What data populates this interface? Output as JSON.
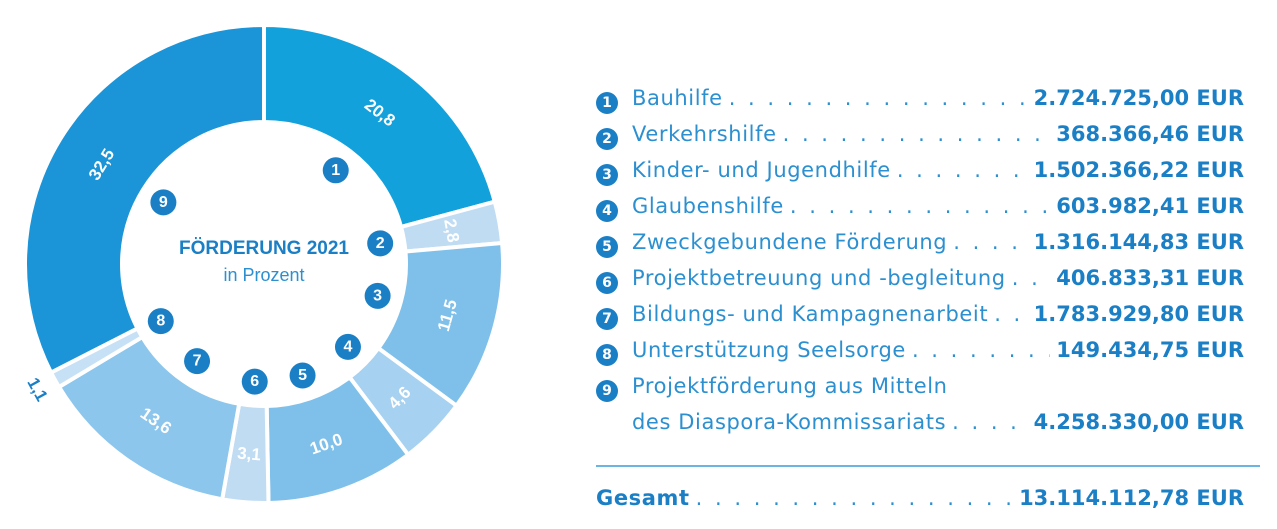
{
  "chart_data": {
    "type": "pie",
    "title": "FÖRDERUNG 2021",
    "subtitle": "in Prozent",
    "slices": [
      {
        "number": "1",
        "value": 20.8,
        "label": "20,8",
        "color": "#13a1dc"
      },
      {
        "number": "2",
        "value": 2.8,
        "label": "2,8",
        "color": "#c0dcf3"
      },
      {
        "number": "3",
        "value": 11.5,
        "label": "11,5",
        "color": "#7fc0ea"
      },
      {
        "number": "4",
        "value": 4.6,
        "label": "4,6",
        "color": "#a7d1f0"
      },
      {
        "number": "5",
        "value": 10.0,
        "label": "10,0",
        "color": "#7fc0ea"
      },
      {
        "number": "6",
        "value": 3.1,
        "label": "3,1",
        "color": "#c0dcf3"
      },
      {
        "number": "7",
        "value": 13.6,
        "label": "13,6",
        "color": "#8cc6ec"
      },
      {
        "number": "8",
        "value": 1.1,
        "label": "1,1",
        "color": "#c6e0f5"
      },
      {
        "number": "9",
        "value": 32.5,
        "label": "32,5",
        "color": "#1b94d8"
      }
    ]
  },
  "legend": {
    "items": [
      {
        "number": "1",
        "label": "Bauhilfe",
        "amount": "2.724.725,00 EUR"
      },
      {
        "number": "2",
        "label": "Verkehrshilfe",
        "amount": "368.366,46 EUR"
      },
      {
        "number": "3",
        "label": "Kinder- und Jugendhilfe",
        "amount": "1.502.366,22 EUR"
      },
      {
        "number": "4",
        "label": "Glaubenshilfe",
        "amount": "603.982,41 EUR"
      },
      {
        "number": "5",
        "label": "Zweckgebundene Förderung",
        "amount": "1.316.144,83 EUR"
      },
      {
        "number": "6",
        "label": "Projektbetreuung und -begleitung",
        "amount": "406.833,31 EUR"
      },
      {
        "number": "7",
        "label": "Bildungs- und Kampagnenarbeit",
        "amount": "1.783.929,80 EUR"
      },
      {
        "number": "8",
        "label": "Unterstützung Seelsorge",
        "amount": "149.434,75 EUR"
      },
      {
        "number": "9",
        "label": "Projektförderung aus Mitteln",
        "label_line2": "des Diaspora-Kommissariats",
        "amount": "4.258.330,00 EUR"
      }
    ],
    "total_label": "Gesamt",
    "total_amount": "13.114.112,78 EUR"
  },
  "colors": {
    "text": "#2b8fd0",
    "emphasis": "#1b7fc6",
    "badge": "#1b7fc6"
  }
}
